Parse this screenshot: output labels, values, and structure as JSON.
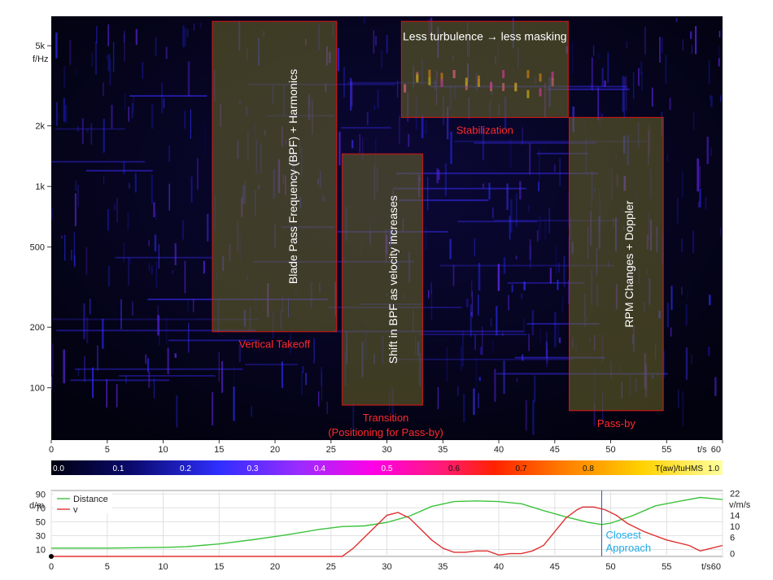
{
  "chart_data": [
    {
      "type": "heatmap",
      "title": "",
      "xlabel": "t/s",
      "ylabel": "f/Hz",
      "xlim": [
        0,
        60
      ],
      "y_scale": "log",
      "ylim": [
        55,
        7000
      ],
      "x_ticks": [
        0,
        5,
        10,
        15,
        20,
        25,
        30,
        35,
        40,
        45,
        50,
        55,
        60
      ],
      "y_ticks": [
        {
          "value": 100,
          "label": "100"
        },
        {
          "value": 200,
          "label": "200"
        },
        {
          "value": 500,
          "label": "500"
        },
        {
          "value": 1000,
          "label": "1k"
        },
        {
          "value": 2000,
          "label": "2k"
        },
        {
          "value": 5000,
          "label": "5k"
        }
      ],
      "colorbar": {
        "label": "T(aw)/tuHMS",
        "range": [
          0.0,
          1.0
        ],
        "ticks": [
          "0.0",
          "0.1",
          "0.2",
          "0.3",
          "0.4",
          "0.5",
          "0.6",
          "0.7",
          "0.8",
          "1.0"
        ],
        "colors": [
          "#000010",
          "#0a0a6e",
          "#2f2fff",
          "#9b2cff",
          "#ff00e6",
          "#ff1a7a",
          "#ff2200",
          "#ff7a00",
          "#ffd200",
          "#ffffa0"
        ]
      },
      "regions": [
        {
          "name": "Vertical Takeoff",
          "t": [
            14.4,
            25.5
          ],
          "f": [
            190,
            6600
          ],
          "inner_text": "Blade Pass Frequency (BPF) + Harmonics",
          "label": "Vertical Takeoff"
        },
        {
          "name": "Transition",
          "t": [
            26.0,
            33.2
          ],
          "f": [
            82,
            1450
          ],
          "inner_text": "Shift in BPF as velocity increases",
          "label": "Transition (Positioning for Pass-by)"
        },
        {
          "name": "Stabilization",
          "t": [
            31.3,
            46.2
          ],
          "f": [
            2200,
            6600
          ],
          "inner_text": "Less turbulence → less masking",
          "label": "Stabilization"
        },
        {
          "name": "Pass-by",
          "t": [
            46.3,
            54.7
          ],
          "f": [
            77,
            2200
          ],
          "inner_text": "RPM Changes + Doppler",
          "label": "Pass-by"
        }
      ]
    },
    {
      "type": "line",
      "xlabel": "t/s",
      "x_ticks": [
        0,
        5,
        10,
        15,
        20,
        25,
        30,
        35,
        40,
        45,
        50,
        55,
        60
      ],
      "left_axis": {
        "label": "d/m",
        "ticks": [
          10,
          30,
          50,
          70,
          90
        ],
        "range": [
          0,
          95
        ]
      },
      "right_axis": {
        "label": "v/m/s",
        "ticks": [
          0,
          6,
          10,
          14,
          22
        ],
        "range": [
          -1,
          23
        ]
      },
      "series": [
        {
          "name": "Distance",
          "axis": "left",
          "color": "#3cc33c",
          "x": [
            0,
            5,
            10,
            12,
            15,
            18,
            21,
            24,
            26,
            28,
            30,
            32,
            34,
            36,
            38,
            40,
            42,
            44,
            46,
            48,
            49.2,
            50,
            52,
            54,
            56,
            58,
            60
          ],
          "y": [
            12,
            12,
            13,
            14,
            18,
            24,
            31,
            39,
            43,
            44,
            49,
            58,
            72,
            79,
            80,
            79,
            76,
            66,
            57,
            49,
            46,
            48,
            59,
            73,
            79,
            85,
            82
          ]
        },
        {
          "name": "v",
          "axis": "right",
          "color": "#e03030",
          "x": [
            0,
            26,
            27,
            28,
            29,
            30,
            31,
            32,
            33,
            34,
            35,
            36,
            37,
            38,
            39,
            40,
            41,
            42,
            43,
            44,
            45,
            46,
            47,
            47.5,
            48.5,
            49.5,
            50.5,
            51.5,
            53,
            55,
            57,
            58,
            59,
            60
          ],
          "y": [
            -1,
            -1,
            2,
            6,
            10,
            14,
            15,
            13,
            9,
            5,
            2,
            0.5,
            0.5,
            1,
            1,
            -0.5,
            0,
            0,
            1,
            3,
            8,
            13,
            16,
            17,
            17,
            16,
            14,
            11,
            8,
            5,
            3,
            1,
            2,
            3
          ]
        }
      ],
      "annotations": [
        {
          "text": "Closest Approach",
          "x": 49.2,
          "color": "#1fa9e6"
        }
      ]
    }
  ]
}
